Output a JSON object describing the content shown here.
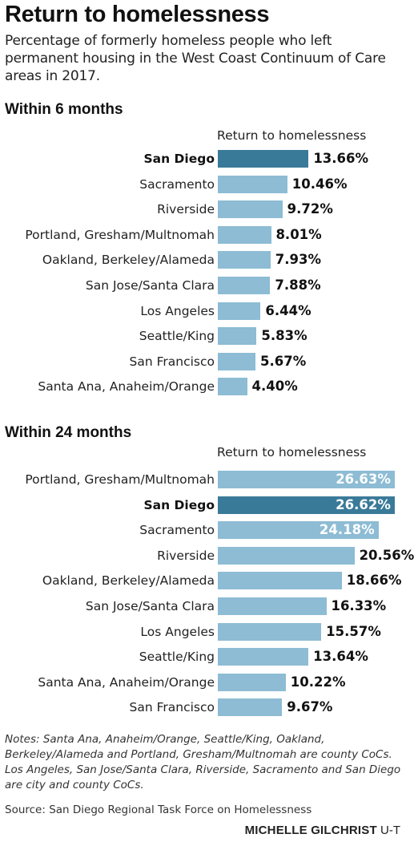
{
  "title": "Return to homelessness",
  "subtitle": "Percentage of formerly homeless people who left permanent housing in the West Coast Continuum of Care areas in 2017.",
  "colors": {
    "bar": "#8dbcd4",
    "highlight": "#3a7a99"
  },
  "chart_data": [
    {
      "type": "bar",
      "orientation": "horizontal",
      "title": "Within 6 months",
      "column_header": "Return to homelessness",
      "highlight": "San Diego",
      "categories": [
        "San Diego",
        "Sacramento",
        "Riverside",
        "Portland, Gresham/Multnomah",
        "Oakland, Berkeley/Alameda",
        "San Jose/Santa Clara",
        "Los Angeles",
        "Seattle/King",
        "San Francisco",
        "Santa Ana, Anaheim/Orange"
      ],
      "values": [
        13.66,
        10.46,
        9.72,
        8.01,
        7.93,
        7.88,
        6.44,
        5.83,
        5.67,
        4.4
      ],
      "labels": [
        "13.66%",
        "10.46%",
        "9.72%",
        "8.01%",
        "7.93%",
        "7.88%",
        "6.44%",
        "5.83%",
        "5.67%",
        "4.40%"
      ],
      "xlim": [
        0,
        27
      ]
    },
    {
      "type": "bar",
      "orientation": "horizontal",
      "title": "Within 24 months",
      "column_header": "Return to homelessness",
      "highlight": "San Diego",
      "categories": [
        "Portland, Gresham/Multnomah",
        "San Diego",
        "Sacramento",
        "Riverside",
        "Oakland, Berkeley/Alameda",
        "San Jose/Santa Clara",
        "Los Angeles",
        "Seattle/King",
        "Santa Ana, Anaheim/Orange",
        "San Francisco"
      ],
      "values": [
        26.63,
        26.62,
        24.18,
        20.56,
        18.66,
        16.33,
        15.57,
        13.64,
        10.22,
        9.67
      ],
      "labels": [
        "26.63%",
        "26.62%",
        "24.18%",
        "20.56%",
        "18.66%",
        "16.33%",
        "15.57%",
        "13.64%",
        "10.22%",
        "9.67%"
      ],
      "xlim": [
        0,
        27
      ]
    }
  ],
  "notes": "Notes: Santa Ana, Anaheim/Orange, Seattle/King, Oakland, Berkeley/Alameda and Portland, Gresham/Multnomah are county CoCs. Los Angeles, San Jose/Santa Clara, Riverside, Sacramento and San Diego are city and county CoCs.",
  "source": "Source: San Diego Regional Task Force on Homelessness",
  "credit": {
    "author": "MICHELLE GILCHRIST",
    "org": "U-T"
  }
}
